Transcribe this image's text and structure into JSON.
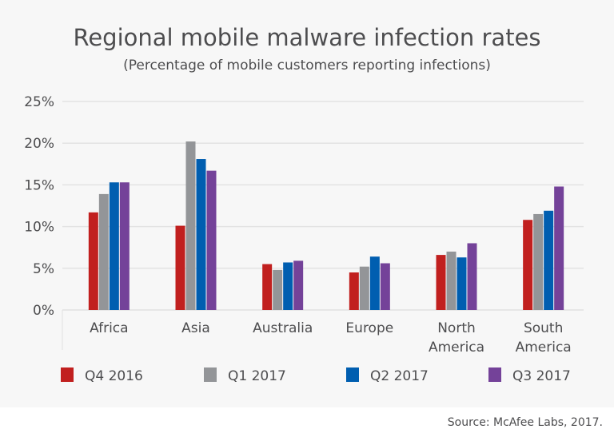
{
  "chart_data": {
    "type": "bar",
    "title": "Regional mobile malware infection rates",
    "subtitle": "(Percentage of mobile customers reporting infections)",
    "xlabel": "",
    "ylabel": "",
    "ylim": [
      0,
      25
    ],
    "yticks": [
      "0%",
      "5%",
      "10%",
      "15%",
      "20%",
      "25%"
    ],
    "ytick_values": [
      0,
      5,
      10,
      15,
      20,
      25
    ],
    "grid": true,
    "legend": "bottom",
    "categories": [
      [
        "Africa"
      ],
      [
        "Asia"
      ],
      [
        "Australia"
      ],
      [
        "Europe"
      ],
      [
        "North",
        "America"
      ],
      [
        "South",
        "America"
      ]
    ],
    "series": [
      {
        "name": "Q4 2016",
        "color": "#c1201f",
        "values": [
          11.7,
          10.1,
          5.5,
          4.5,
          6.6,
          10.8
        ]
      },
      {
        "name": "Q1 2017",
        "color": "#939598",
        "values": [
          13.9,
          20.2,
          4.8,
          5.2,
          7.0,
          11.5
        ]
      },
      {
        "name": "Q2 2017",
        "color": "#005eb0",
        "values": [
          15.3,
          18.1,
          5.7,
          6.4,
          6.3,
          11.9
        ]
      },
      {
        "name": "Q3 2017",
        "color": "#744299",
        "values": [
          15.3,
          16.7,
          5.9,
          5.6,
          8.0,
          14.8
        ]
      }
    ],
    "source": "Source: McAfee Labs, 2017."
  }
}
